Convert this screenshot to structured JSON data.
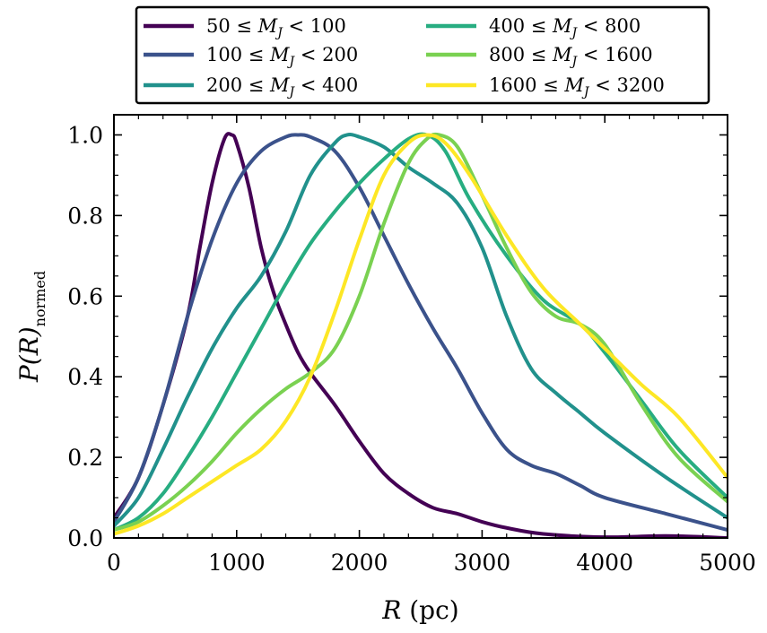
{
  "chart_data": {
    "type": "line",
    "xlabel": {
      "var": "R",
      "unit": " (pc)"
    },
    "ylabel": {
      "var": "P(R)",
      "sub": "normed"
    },
    "xlim": [
      0,
      5000
    ],
    "ylim": [
      0,
      1.05
    ],
    "xticks": [
      0,
      1000,
      2000,
      3000,
      4000,
      5000
    ],
    "yticks": [
      0.0,
      0.2,
      0.4,
      0.6,
      0.8,
      1.0
    ],
    "xtick_labels": [
      "0",
      "1000",
      "2000",
      "3000",
      "4000",
      "5000"
    ],
    "ytick_labels": [
      "0.0",
      "0.2",
      "0.4",
      "0.6",
      "0.8",
      "1.0"
    ],
    "grid": false,
    "legend_position": "top-outside",
    "series": [
      {
        "label": {
          "lo": "50",
          "hi": "100"
        },
        "color": "#440154",
        "x": [
          0,
          200,
          400,
          600,
          700,
          800,
          900,
          960,
          1000,
          1100,
          1200,
          1300,
          1400,
          1500,
          1600,
          1800,
          2000,
          2200,
          2400,
          2600,
          2800,
          3000,
          3200,
          3500,
          4000,
          4500,
          5000
        ],
        "y": [
          0.05,
          0.15,
          0.33,
          0.55,
          0.72,
          0.88,
          0.99,
          1.0,
          0.98,
          0.87,
          0.72,
          0.61,
          0.53,
          0.46,
          0.41,
          0.33,
          0.24,
          0.16,
          0.11,
          0.075,
          0.06,
          0.04,
          0.025,
          0.01,
          0.002,
          0.005,
          0.0
        ]
      },
      {
        "label": {
          "lo": "100",
          "hi": "200"
        },
        "color": "#3b528b",
        "x": [
          0,
          200,
          400,
          600,
          800,
          1000,
          1200,
          1400,
          1500,
          1600,
          1800,
          2000,
          2200,
          2400,
          2600,
          2800,
          3000,
          3200,
          3400,
          3600,
          3800,
          4000,
          4500,
          5000
        ],
        "y": [
          0.04,
          0.15,
          0.33,
          0.55,
          0.74,
          0.88,
          0.96,
          0.995,
          1.0,
          0.995,
          0.96,
          0.87,
          0.75,
          0.63,
          0.52,
          0.42,
          0.31,
          0.22,
          0.18,
          0.16,
          0.13,
          0.1,
          0.06,
          0.02
        ]
      },
      {
        "label": {
          "lo": "200",
          "hi": "400"
        },
        "color": "#21918c",
        "x": [
          0,
          200,
          400,
          600,
          800,
          1000,
          1200,
          1400,
          1600,
          1800,
          1900,
          2000,
          2200,
          2400,
          2600,
          2800,
          3000,
          3200,
          3400,
          3600,
          3800,
          4000,
          4500,
          5000
        ],
        "y": [
          0.03,
          0.1,
          0.22,
          0.35,
          0.47,
          0.57,
          0.65,
          0.76,
          0.9,
          0.98,
          1.0,
          0.995,
          0.97,
          0.92,
          0.88,
          0.83,
          0.72,
          0.55,
          0.42,
          0.36,
          0.31,
          0.26,
          0.15,
          0.05
        ]
      },
      {
        "label": {
          "lo": "400",
          "hi": "800"
        },
        "color": "#27ad81",
        "x": [
          0,
          200,
          400,
          600,
          800,
          1000,
          1200,
          1400,
          1600,
          1800,
          2000,
          2200,
          2400,
          2550,
          2700,
          2900,
          3200,
          3500,
          3800,
          4000,
          4300,
          4600,
          5000
        ],
        "y": [
          0.02,
          0.05,
          0.11,
          0.2,
          0.3,
          0.41,
          0.52,
          0.63,
          0.73,
          0.81,
          0.88,
          0.94,
          0.99,
          1.0,
          0.96,
          0.84,
          0.7,
          0.59,
          0.53,
          0.46,
          0.34,
          0.22,
          0.1
        ]
      },
      {
        "label": {
          "lo": "800",
          "hi": "1600"
        },
        "color": "#7ad151",
        "x": [
          0,
          200,
          400,
          600,
          800,
          1000,
          1200,
          1400,
          1600,
          1800,
          2000,
          2200,
          2400,
          2550,
          2650,
          2800,
          3000,
          3200,
          3400,
          3600,
          3800,
          4000,
          4300,
          4600,
          5000
        ],
        "y": [
          0.02,
          0.04,
          0.08,
          0.13,
          0.19,
          0.26,
          0.32,
          0.37,
          0.41,
          0.47,
          0.6,
          0.78,
          0.93,
          0.99,
          1.0,
          0.97,
          0.85,
          0.72,
          0.61,
          0.55,
          0.53,
          0.48,
          0.33,
          0.2,
          0.09
        ]
      },
      {
        "label": {
          "lo": "1600",
          "hi": "3200"
        },
        "color": "#fde725",
        "x": [
          0,
          200,
          400,
          600,
          800,
          1000,
          1200,
          1400,
          1600,
          1800,
          2000,
          2200,
          2400,
          2550,
          2700,
          2900,
          3200,
          3500,
          3800,
          4000,
          4300,
          4600,
          5000
        ],
        "y": [
          0.01,
          0.03,
          0.06,
          0.1,
          0.14,
          0.18,
          0.22,
          0.29,
          0.4,
          0.56,
          0.74,
          0.9,
          0.98,
          1.0,
          0.98,
          0.9,
          0.75,
          0.62,
          0.53,
          0.47,
          0.38,
          0.3,
          0.15
        ]
      }
    ]
  }
}
